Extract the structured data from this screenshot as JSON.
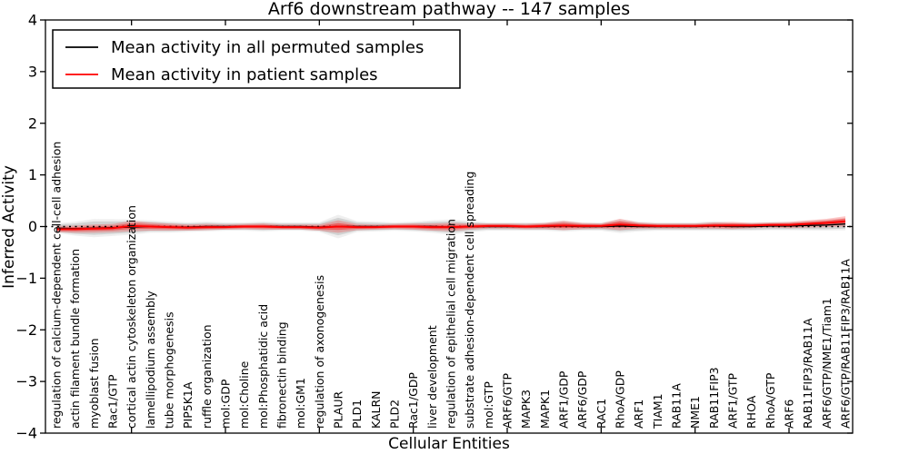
{
  "chart_data": {
    "type": "line",
    "title": "Arf6 downstream pathway -- 147 samples",
    "xlabel": "Cellular Entities",
    "ylabel": "Inferred Activity",
    "ylim": [
      -4,
      4
    ],
    "yticks": [
      4,
      3,
      2,
      1,
      0,
      -1,
      -2,
      -3,
      -4
    ],
    "grid": false,
    "legend_position": "upper left",
    "zero_line": {
      "value": 0,
      "style": "dashed",
      "color": "#000000"
    },
    "categories": [
      "regulation of calcium-dependent cell-cell adhesion",
      "actin filament bundle formation",
      "myoblast fusion",
      "Rac1/GTP",
      "cortical actin cytoskeleton organization",
      "lamellipodium assembly",
      "tube morphogenesis",
      "PIP5K1A",
      "ruffle organization",
      "mol:GDP",
      "mol:Choline",
      "mol:Phosphatidic acid",
      "fibronectin binding",
      "mol:GM1",
      "regulation of axonogenesis",
      "PLAUR",
      "PLD1",
      "KALRN",
      "PLD2",
      "Rac1/GDP",
      "liver development",
      "regulation of epithelial cell migration",
      "substrate adhesion-dependent cell spreading",
      "mol:GTP",
      "ARF6/GTP",
      "MAPK3",
      "MAPK1",
      "ARF1/GDP",
      "ARF6/GDP",
      "RAC1",
      "RhoA/GDP",
      "ARF1",
      "TIAM1",
      "RAB11A",
      "NME1",
      "RAB11FIP3",
      "ARF1/GTP",
      "RHOA",
      "RhoA/GTP",
      "ARF6",
      "RAB11FIP3/RAB11A",
      "ARF6/GTP/NME1/Tiam1",
      "ARF6/GTP/RAB11FIP3/RAB11A"
    ],
    "series": [
      {
        "name": "Mean activity in all permuted samples",
        "color": "#000000",
        "band_color": "#909090",
        "values": [
          -0.03,
          -0.04,
          -0.03,
          -0.02,
          -0.01,
          0,
          -0.01,
          -0.01,
          0,
          0,
          0,
          0,
          0,
          0,
          -0.01,
          0,
          0,
          0,
          0,
          0,
          0,
          -0.01,
          0,
          0,
          0,
          0,
          0,
          0.01,
          0,
          0,
          0.01,
          0,
          0,
          0,
          0,
          0.01,
          0,
          0,
          0.01,
          0.01,
          0.02,
          0.03,
          0.05
        ],
        "band_half_width": [
          0.07,
          0.1,
          0.13,
          0.12,
          0.11,
          0.09,
          0.08,
          0.07,
          0.07,
          0.06,
          0.06,
          0.07,
          0.06,
          0.06,
          0.07,
          0.17,
          0.08,
          0.07,
          0.06,
          0.07,
          0.09,
          0.11,
          0.08,
          0.06,
          0.06,
          0.06,
          0.06,
          0.08,
          0.06,
          0.06,
          0.1,
          0.07,
          0.06,
          0.06,
          0.06,
          0.07,
          0.06,
          0.06,
          0.06,
          0.06,
          0.07,
          0.08,
          0.09
        ]
      },
      {
        "name": "Mean activity in patient samples",
        "color": "#ff0000",
        "band_color": "#ff0000",
        "values": [
          -0.05,
          -0.05,
          -0.04,
          -0.03,
          0.01,
          0,
          -0.01,
          -0.02,
          -0.01,
          -0.01,
          0,
          0,
          -0.01,
          -0.01,
          -0.02,
          0,
          -0.01,
          -0.01,
          0,
          0,
          -0.01,
          -0.01,
          0,
          0.01,
          0.01,
          0,
          0.01,
          0.02,
          0.01,
          0.01,
          0.04,
          0.02,
          0.01,
          0.01,
          0.01,
          0.02,
          0.02,
          0.02,
          0.03,
          0.03,
          0.05,
          0.07,
          0.1
        ],
        "band_half_width": [
          0.06,
          0.07,
          0.08,
          0.08,
          0.1,
          0.08,
          0.07,
          0.06,
          0.06,
          0.05,
          0.05,
          0.06,
          0.05,
          0.05,
          0.06,
          0.12,
          0.06,
          0.05,
          0.05,
          0.06,
          0.07,
          0.08,
          0.06,
          0.05,
          0.05,
          0.05,
          0.06,
          0.09,
          0.06,
          0.05,
          0.11,
          0.06,
          0.05,
          0.05,
          0.05,
          0.06,
          0.07,
          0.05,
          0.05,
          0.06,
          0.07,
          0.08,
          0.1
        ]
      }
    ]
  }
}
